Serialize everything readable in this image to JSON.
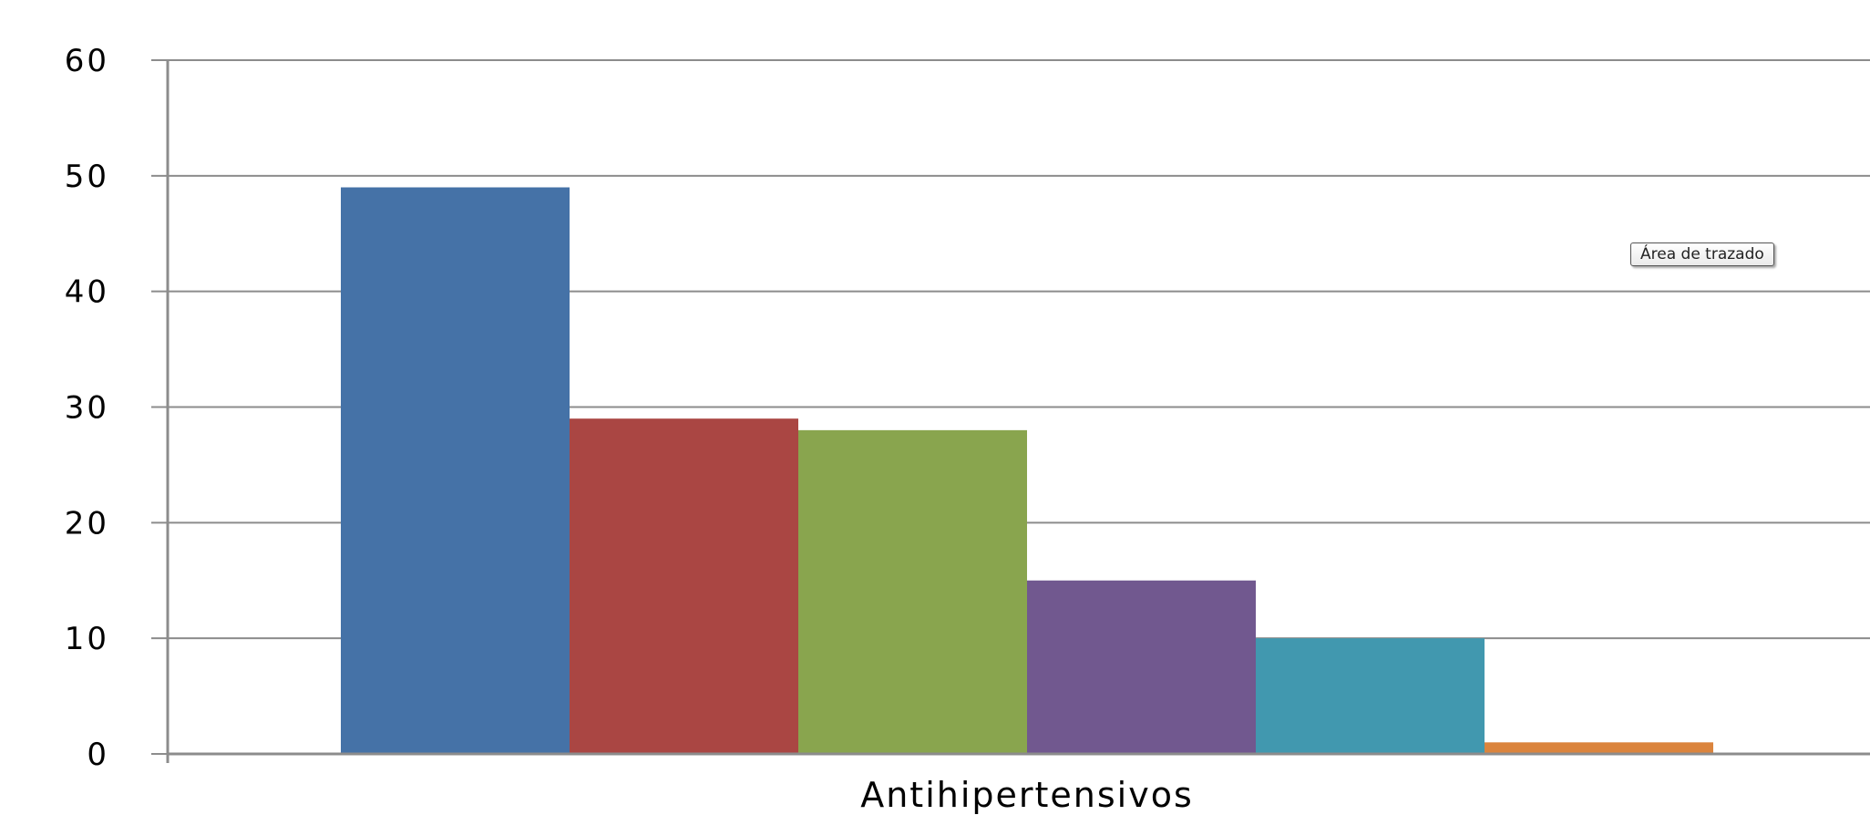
{
  "chart_data": {
    "type": "bar",
    "categories": [
      "Antihipertensivos"
    ],
    "series": [
      {
        "values": [
          49
        ],
        "color": "#4572A7"
      },
      {
        "values": [
          29
        ],
        "color": "#AA4643"
      },
      {
        "values": [
          28
        ],
        "color": "#89A54E"
      },
      {
        "values": [
          15
        ],
        "color": "#71588F"
      },
      {
        "values": [
          10
        ],
        "color": "#4198AF"
      },
      {
        "values": [
          1
        ],
        "color": "#DB843D"
      }
    ],
    "title": "",
    "xlabel": "",
    "ylabel": "",
    "ylim": [
      0,
      60
    ],
    "yticks": [
      0,
      10,
      20,
      30,
      40,
      50,
      60
    ],
    "grid": true,
    "legend": "none"
  },
  "tooltip": {
    "label": "Área de trazado"
  }
}
